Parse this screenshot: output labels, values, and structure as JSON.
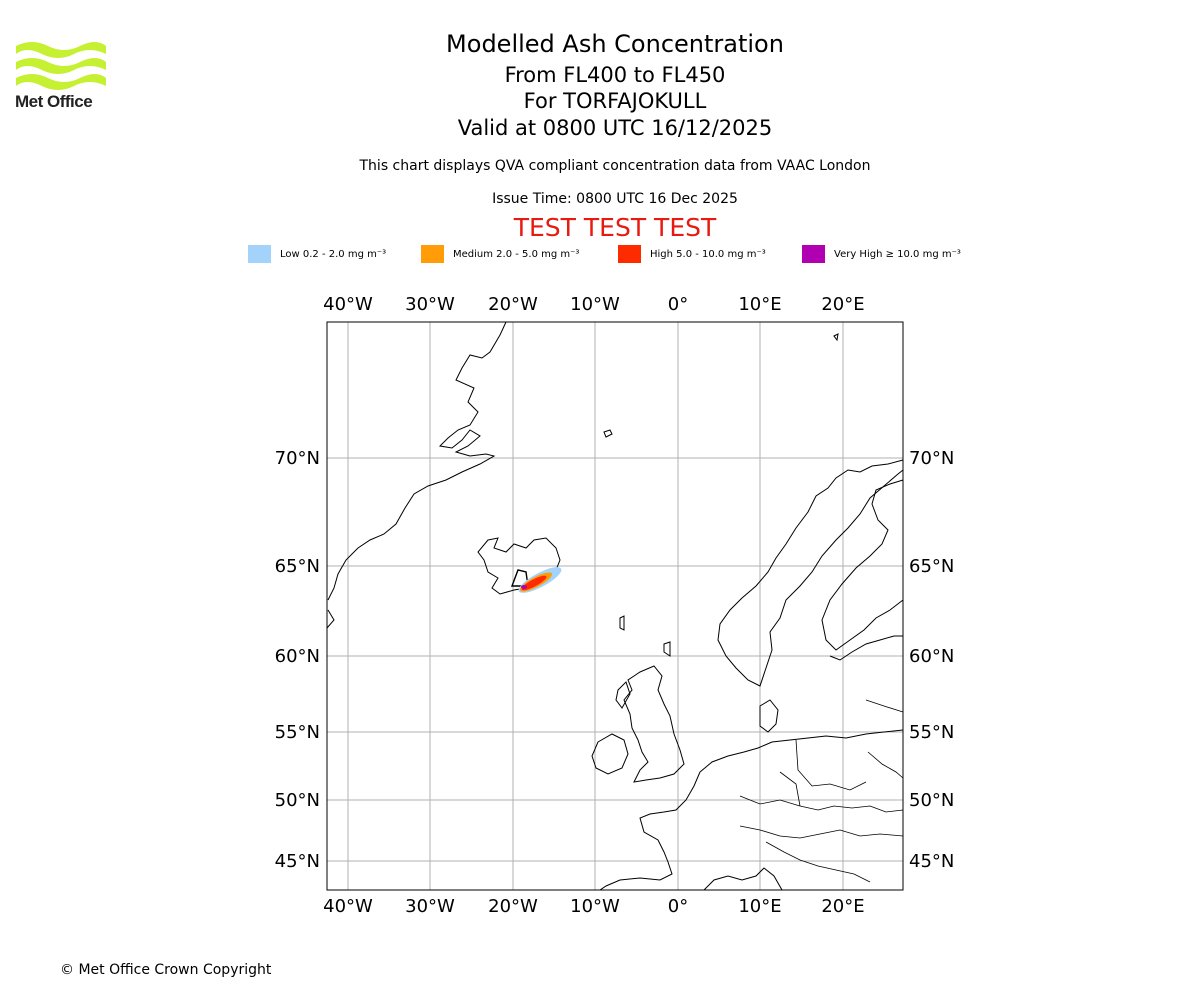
{
  "branding": {
    "logo_text": "Met Office",
    "logo_color": "#c6f032"
  },
  "header": {
    "title": "Modelled Ash Concentration",
    "flight_levels": "From FL400 to FL450",
    "volcano": "For TORFAJOKULL",
    "valid_time": "Valid at 0800 UTC 16/12/2025",
    "description": "This chart displays QVA compliant concentration data from VAAC London",
    "issue_time": "Issue Time: 0800 UTC 16 Dec 2025",
    "test_banner": "TEST TEST TEST"
  },
  "legend": [
    {
      "label": "Low 0.2 - 2.0 mg m⁻³",
      "color": "#a3d3fb"
    },
    {
      "label": "Medium 2.0 - 5.0 mg m⁻³",
      "color": "#ff9c07"
    },
    {
      "label": "High 5.0 - 10.0 mg m⁻³",
      "color": "#ff2b00"
    },
    {
      "label": "Very High  ≥  10.0 mg m⁻³",
      "color": "#b000b2"
    }
  ],
  "map": {
    "longitude_labels": [
      "40°W",
      "30°W",
      "20°W",
      "10°W",
      "0°",
      "10°E",
      "20°E"
    ],
    "latitude_labels": [
      "70°N",
      "65°N",
      "60°N",
      "55°N",
      "50°N",
      "45°N"
    ],
    "longitude_ticks": [
      -40,
      -30,
      -20,
      -10,
      0,
      10,
      20
    ],
    "latitude_ticks": [
      70,
      65,
      60,
      55,
      50,
      45
    ]
  },
  "footer": {
    "copyright": "© Met Office Crown Copyright"
  }
}
